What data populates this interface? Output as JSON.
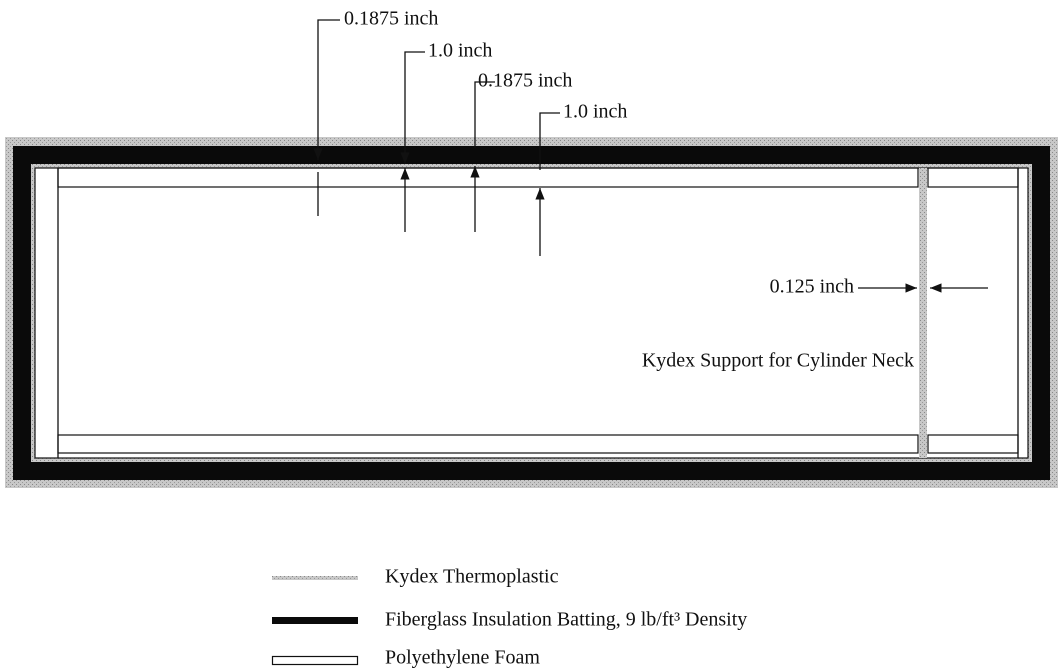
{
  "dimensions": [
    {
      "label": "0.1875 inch"
    },
    {
      "label": "1.0 inch"
    },
    {
      "label": "0.1875 inch"
    },
    {
      "label": "1.0 inch"
    },
    {
      "label": "0.125 inch"
    }
  ],
  "annotation": "Kydex Support for Cylinder Neck",
  "legend": [
    {
      "label": "Kydex Thermoplastic"
    },
    {
      "label": "Fiberglass Insulation Batting, 9 lb/ft³ Density"
    },
    {
      "label": "Polyethylene Foam"
    }
  ]
}
